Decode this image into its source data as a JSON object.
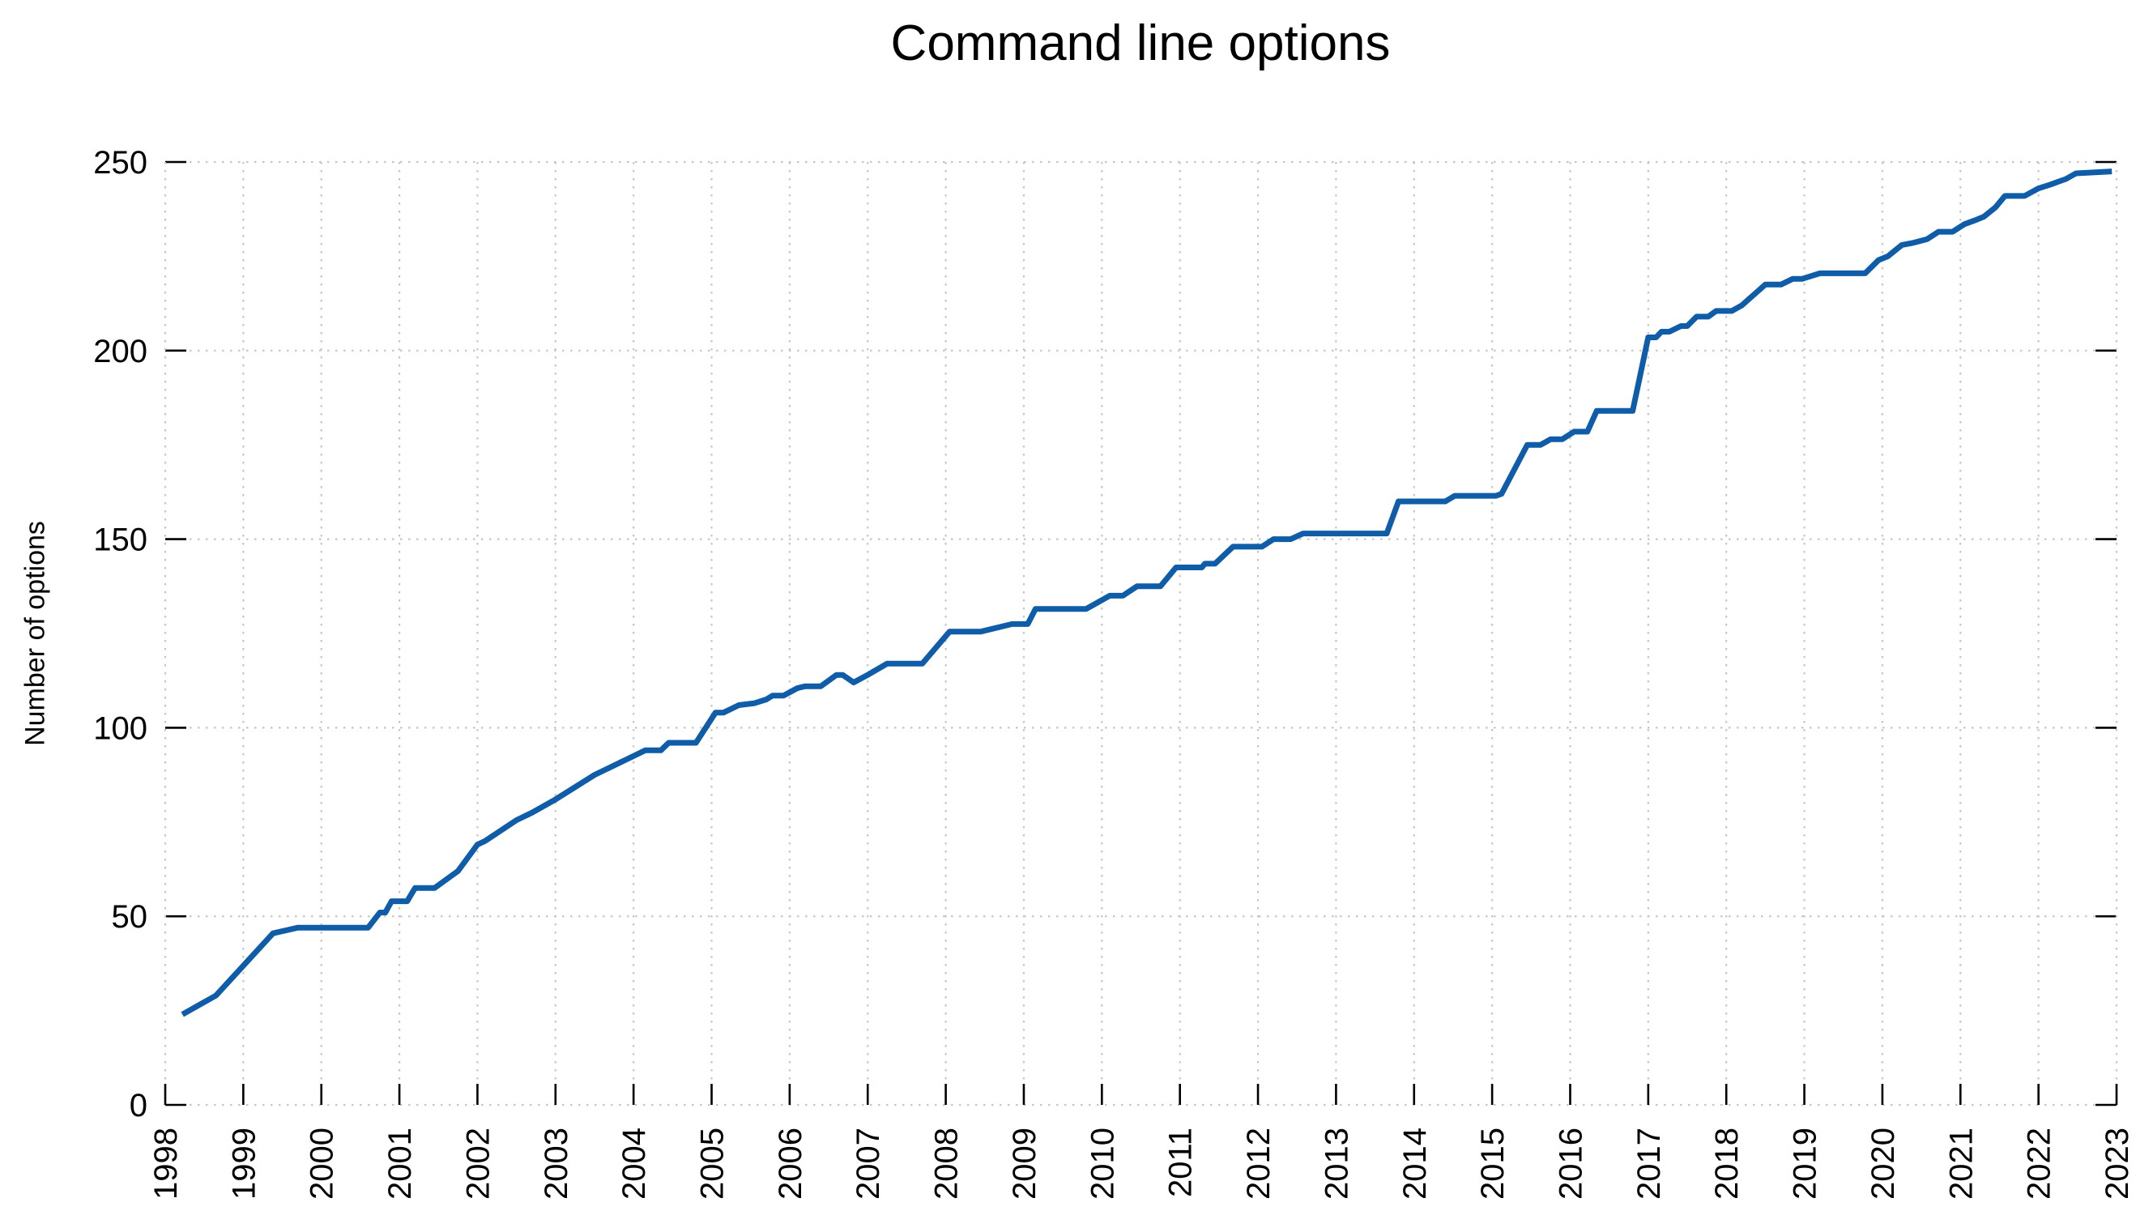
{
  "chart_data": {
    "type": "line",
    "title": "Command line options",
    "xlabel": "",
    "ylabel": "Number of options",
    "xlim": [
      1998,
      2023
    ],
    "ylim": [
      0,
      250
    ],
    "x_ticks": [
      1998,
      1999,
      2000,
      2001,
      2002,
      2003,
      2004,
      2005,
      2006,
      2007,
      2008,
      2009,
      2010,
      2011,
      2012,
      2013,
      2014,
      2015,
      2016,
      2017,
      2018,
      2019,
      2020,
      2021,
      2022,
      2023
    ],
    "y_ticks": [
      0,
      50,
      100,
      150,
      200,
      250
    ],
    "grid": "dotted",
    "legend_position": "none",
    "tick_style": "inward, mirrored on left/right y-axis and bottom x-axis, no top ticks",
    "series": [
      {
        "name": "number-of-options",
        "color": "#0f5ca8",
        "points": [
          [
            1998.22,
            24
          ],
          [
            1998.65,
            29
          ],
          [
            1999.38,
            45.5
          ],
          [
            1999.7,
            47
          ],
          [
            2000.6,
            47
          ],
          [
            2000.75,
            51
          ],
          [
            2000.82,
            51
          ],
          [
            2000.9,
            54
          ],
          [
            2001.1,
            54
          ],
          [
            2001.2,
            57.5
          ],
          [
            2001.45,
            57.5
          ],
          [
            2001.75,
            62
          ],
          [
            2002.0,
            69
          ],
          [
            2002.1,
            70
          ],
          [
            2002.5,
            75.5
          ],
          [
            2002.7,
            77.5
          ],
          [
            2003.0,
            81
          ],
          [
            2003.5,
            87.5
          ],
          [
            2003.9,
            91.5
          ],
          [
            2004.15,
            94
          ],
          [
            2004.35,
            94
          ],
          [
            2004.45,
            96
          ],
          [
            2004.8,
            96
          ],
          [
            2005.05,
            104
          ],
          [
            2005.15,
            104
          ],
          [
            2005.35,
            106
          ],
          [
            2005.55,
            106.5
          ],
          [
            2005.7,
            107.5
          ],
          [
            2005.78,
            108.5
          ],
          [
            2005.92,
            108.5
          ],
          [
            2006.1,
            110.5
          ],
          [
            2006.2,
            111
          ],
          [
            2006.4,
            111
          ],
          [
            2006.6,
            114
          ],
          [
            2006.68,
            114
          ],
          [
            2006.82,
            112
          ],
          [
            2007.0,
            114
          ],
          [
            2007.25,
            117
          ],
          [
            2007.7,
            117
          ],
          [
            2008.05,
            125.5
          ],
          [
            2008.45,
            125.5
          ],
          [
            2008.85,
            127.5
          ],
          [
            2009.05,
            127.5
          ],
          [
            2009.15,
            131.5
          ],
          [
            2009.8,
            131.5
          ],
          [
            2010.1,
            135
          ],
          [
            2010.27,
            135
          ],
          [
            2010.45,
            137.5
          ],
          [
            2010.75,
            137.5
          ],
          [
            2010.95,
            142.5
          ],
          [
            2011.28,
            142.5
          ],
          [
            2011.32,
            143.5
          ],
          [
            2011.45,
            143.5
          ],
          [
            2011.68,
            148
          ],
          [
            2012.05,
            148
          ],
          [
            2012.2,
            150
          ],
          [
            2012.42,
            150
          ],
          [
            2012.58,
            151.5
          ],
          [
            2013.65,
            151.5
          ],
          [
            2013.8,
            160
          ],
          [
            2014.4,
            160
          ],
          [
            2014.52,
            161.5
          ],
          [
            2015.05,
            161.5
          ],
          [
            2015.12,
            162
          ],
          [
            2015.45,
            175
          ],
          [
            2015.62,
            175
          ],
          [
            2015.75,
            176.5
          ],
          [
            2015.9,
            176.5
          ],
          [
            2016.05,
            178.5
          ],
          [
            2016.22,
            178.5
          ],
          [
            2016.34,
            184
          ],
          [
            2016.8,
            184
          ],
          [
            2017.0,
            203.5
          ],
          [
            2017.1,
            203.5
          ],
          [
            2017.17,
            205
          ],
          [
            2017.27,
            205
          ],
          [
            2017.42,
            206.5
          ],
          [
            2017.5,
            206.5
          ],
          [
            2017.62,
            209
          ],
          [
            2017.77,
            209
          ],
          [
            2017.87,
            210.5
          ],
          [
            2018.07,
            210.5
          ],
          [
            2018.2,
            212
          ],
          [
            2018.5,
            217.5
          ],
          [
            2018.7,
            217.5
          ],
          [
            2018.85,
            219
          ],
          [
            2018.97,
            219
          ],
          [
            2019.2,
            220.5
          ],
          [
            2019.78,
            220.5
          ],
          [
            2019.95,
            224
          ],
          [
            2020.07,
            225
          ],
          [
            2020.25,
            228
          ],
          [
            2020.38,
            228.5
          ],
          [
            2020.57,
            229.5
          ],
          [
            2020.72,
            231.5
          ],
          [
            2020.9,
            231.5
          ],
          [
            2021.05,
            233.5
          ],
          [
            2021.18,
            234.5
          ],
          [
            2021.3,
            235.5
          ],
          [
            2021.45,
            238
          ],
          [
            2021.57,
            241
          ],
          [
            2021.82,
            241
          ],
          [
            2022.0,
            243
          ],
          [
            2022.15,
            244
          ],
          [
            2022.35,
            245.5
          ],
          [
            2022.48,
            247
          ],
          [
            2022.94,
            247.5
          ]
        ]
      }
    ],
    "colors": {
      "line": "#0f5ca8",
      "grid": "#c6c6c6",
      "tick": "#000000",
      "text": "#000000",
      "background": "#ffffff"
    }
  }
}
